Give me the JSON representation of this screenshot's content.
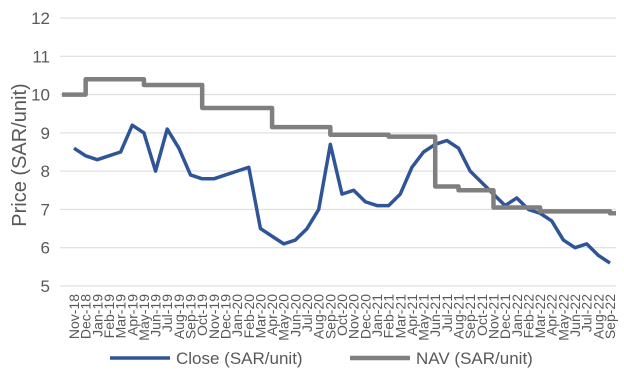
{
  "chart_data": {
    "type": "line",
    "ylabel": "Price (SAR/unit)",
    "xlabel": "",
    "ylim": [
      5,
      12
    ],
    "yticks": [
      "5",
      "6",
      "7",
      "8",
      "9",
      "10",
      "11",
      "12"
    ],
    "grid": true,
    "legend_position": "bottom",
    "x": [
      "Nov-18",
      "Dec-18",
      "Jan-19",
      "Feb-19",
      "Mar-19",
      "Apr-19",
      "May-19",
      "Jun-19",
      "Jul-19",
      "Aug-19",
      "Sep-19",
      "Oct-19",
      "Nov-19",
      "Dec-19",
      "Jan-20",
      "Feb-20",
      "Mar-20",
      "Apr-20",
      "May-20",
      "Jun-20",
      "Jul-20",
      "Aug-20",
      "Sep-20",
      "Oct-20",
      "Nov-20",
      "Dec-20",
      "Jan-21",
      "Feb-21",
      "Mar-21",
      "Apr-21",
      "May-21",
      "Jun-21",
      "Jul-21",
      "Aug-21",
      "Sep-21",
      "Oct-21",
      "Nov-21",
      "Dec-21",
      "Jan-22",
      "Feb-22",
      "Mar-22",
      "Apr-22",
      "May-22",
      "Jun-22",
      "Jul-22",
      "Aug-22",
      "Sep-22"
    ],
    "series": [
      {
        "name": "Close (SAR/unit)",
        "color": "#2f5597",
        "values": [
          8.6,
          8.4,
          8.3,
          8.4,
          8.5,
          9.2,
          9.0,
          8.0,
          9.1,
          8.6,
          7.9,
          7.8,
          7.8,
          7.9,
          8.0,
          8.1,
          6.5,
          6.3,
          6.1,
          6.2,
          6.5,
          7.0,
          8.7,
          7.4,
          7.5,
          7.2,
          7.1,
          7.1,
          7.4,
          8.1,
          8.5,
          8.7,
          8.8,
          8.6,
          8.0,
          7.7,
          7.4,
          7.1,
          7.3,
          7.0,
          6.9,
          6.7,
          6.2,
          6.0,
          6.1,
          5.8,
          5.6
        ]
      },
      {
        "name": "NAV (SAR/unit)",
        "color": "#7f7f7f",
        "values": [
          10.0,
          10.4,
          10.4,
          10.4,
          10.4,
          10.4,
          10.25,
          10.25,
          10.25,
          10.25,
          10.25,
          9.65,
          9.65,
          9.65,
          9.65,
          9.65,
          9.65,
          9.15,
          9.15,
          9.15,
          9.15,
          9.15,
          8.95,
          8.95,
          8.95,
          8.95,
          8.95,
          8.9,
          8.9,
          8.9,
          8.9,
          7.6,
          7.6,
          7.5,
          7.5,
          7.5,
          7.05,
          7.05,
          7.05,
          7.05,
          6.95,
          6.95,
          6.95,
          6.95,
          6.95,
          6.95,
          6.9
        ]
      }
    ]
  }
}
